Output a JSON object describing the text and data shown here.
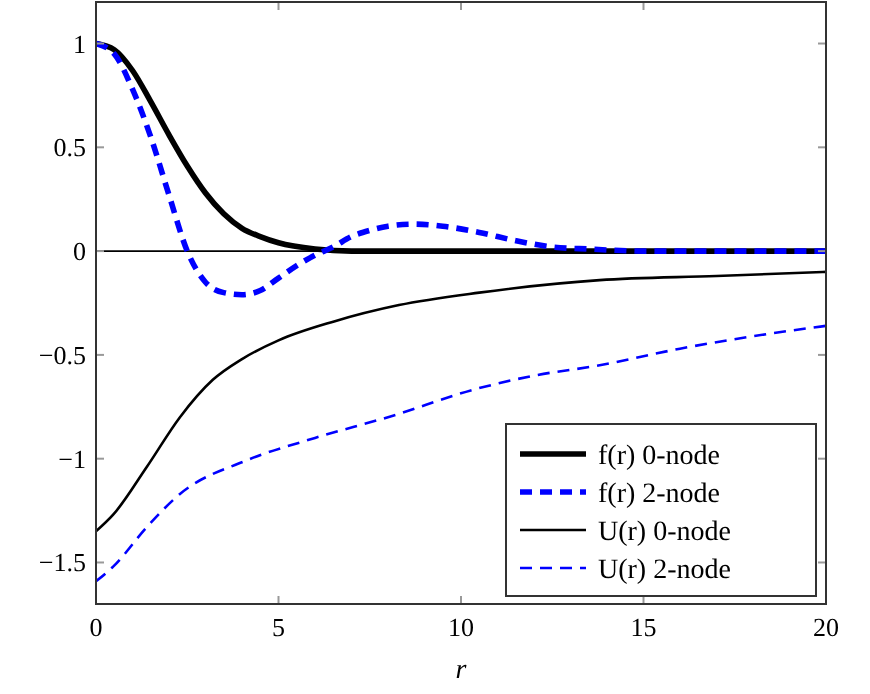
{
  "chart_data": {
    "type": "line",
    "xlabel": "r",
    "xlim": [
      0,
      20
    ],
    "ylim": [
      -1.7,
      1.2
    ],
    "xticks": [
      0,
      5,
      10,
      15,
      20
    ],
    "yticks": [
      {
        "value": -1.5,
        "label": "−1.5"
      },
      {
        "value": -1,
        "label": "−1"
      },
      {
        "value": -0.5,
        "label": "−0.5"
      },
      0,
      0.5,
      1
    ],
    "legend": "bottom right",
    "grid": false,
    "ref_lines": [
      {
        "axis": "y",
        "value": 0,
        "color": "#000000"
      }
    ],
    "series": [
      {
        "name": "f(r) 0-node",
        "color": "#000000",
        "line_style": "solid",
        "x": [
          0,
          0.5,
          1,
          1.5,
          2,
          2.5,
          3,
          3.5,
          4,
          4.5,
          5,
          6,
          7,
          20
        ],
        "values": [
          1,
          0.97,
          0.87,
          0.72,
          0.56,
          0.41,
          0.28,
          0.18,
          0.11,
          0.07,
          0.04,
          0.01,
          0,
          0
        ]
      },
      {
        "name": "f(r) 2-node",
        "color": "#0000ff",
        "line_style": "dashed",
        "x": [
          0,
          0.5,
          1,
          1.5,
          2,
          2.5,
          3,
          3.5,
          4,
          4.5,
          5,
          5.5,
          6,
          6.5,
          7,
          7.5,
          8,
          8.7,
          9.5,
          10.5,
          11.5,
          12.5,
          13.5,
          15,
          20
        ],
        "values": [
          1,
          0.95,
          0.78,
          0.55,
          0.27,
          0,
          -0.15,
          -0.2,
          -0.21,
          -0.19,
          -0.13,
          -0.07,
          -0.02,
          0.02,
          0.07,
          0.1,
          0.12,
          0.13,
          0.12,
          0.09,
          0.05,
          0.02,
          0.01,
          0,
          0
        ]
      },
      {
        "name": "U(r) 0-node",
        "color": "#000000",
        "line_style": "solid",
        "x": [
          0,
          0.47,
          1.39,
          2.3,
          3.2,
          4,
          5,
          6.5,
          8.3,
          10.5,
          13.8,
          17,
          20
        ],
        "values": [
          -1.35,
          -1.27,
          -1.04,
          -0.8,
          -0.62,
          -0.52,
          -0.43,
          -0.34,
          -0.26,
          -0.2,
          -0.14,
          -0.12,
          -0.1
        ]
      },
      {
        "name": "U(r) 2-node",
        "color": "#0000ff",
        "line_style": "dashed",
        "x": [
          0,
          0.47,
          1.39,
          2.3,
          4.1,
          6,
          8,
          10.5,
          12,
          13.8,
          16,
          18,
          20
        ],
        "values": [
          -1.59,
          -1.52,
          -1.33,
          -1.17,
          -1.01,
          -0.9,
          -0.8,
          -0.66,
          -0.6,
          -0.55,
          -0.47,
          -0.41,
          -0.36
        ]
      }
    ]
  }
}
